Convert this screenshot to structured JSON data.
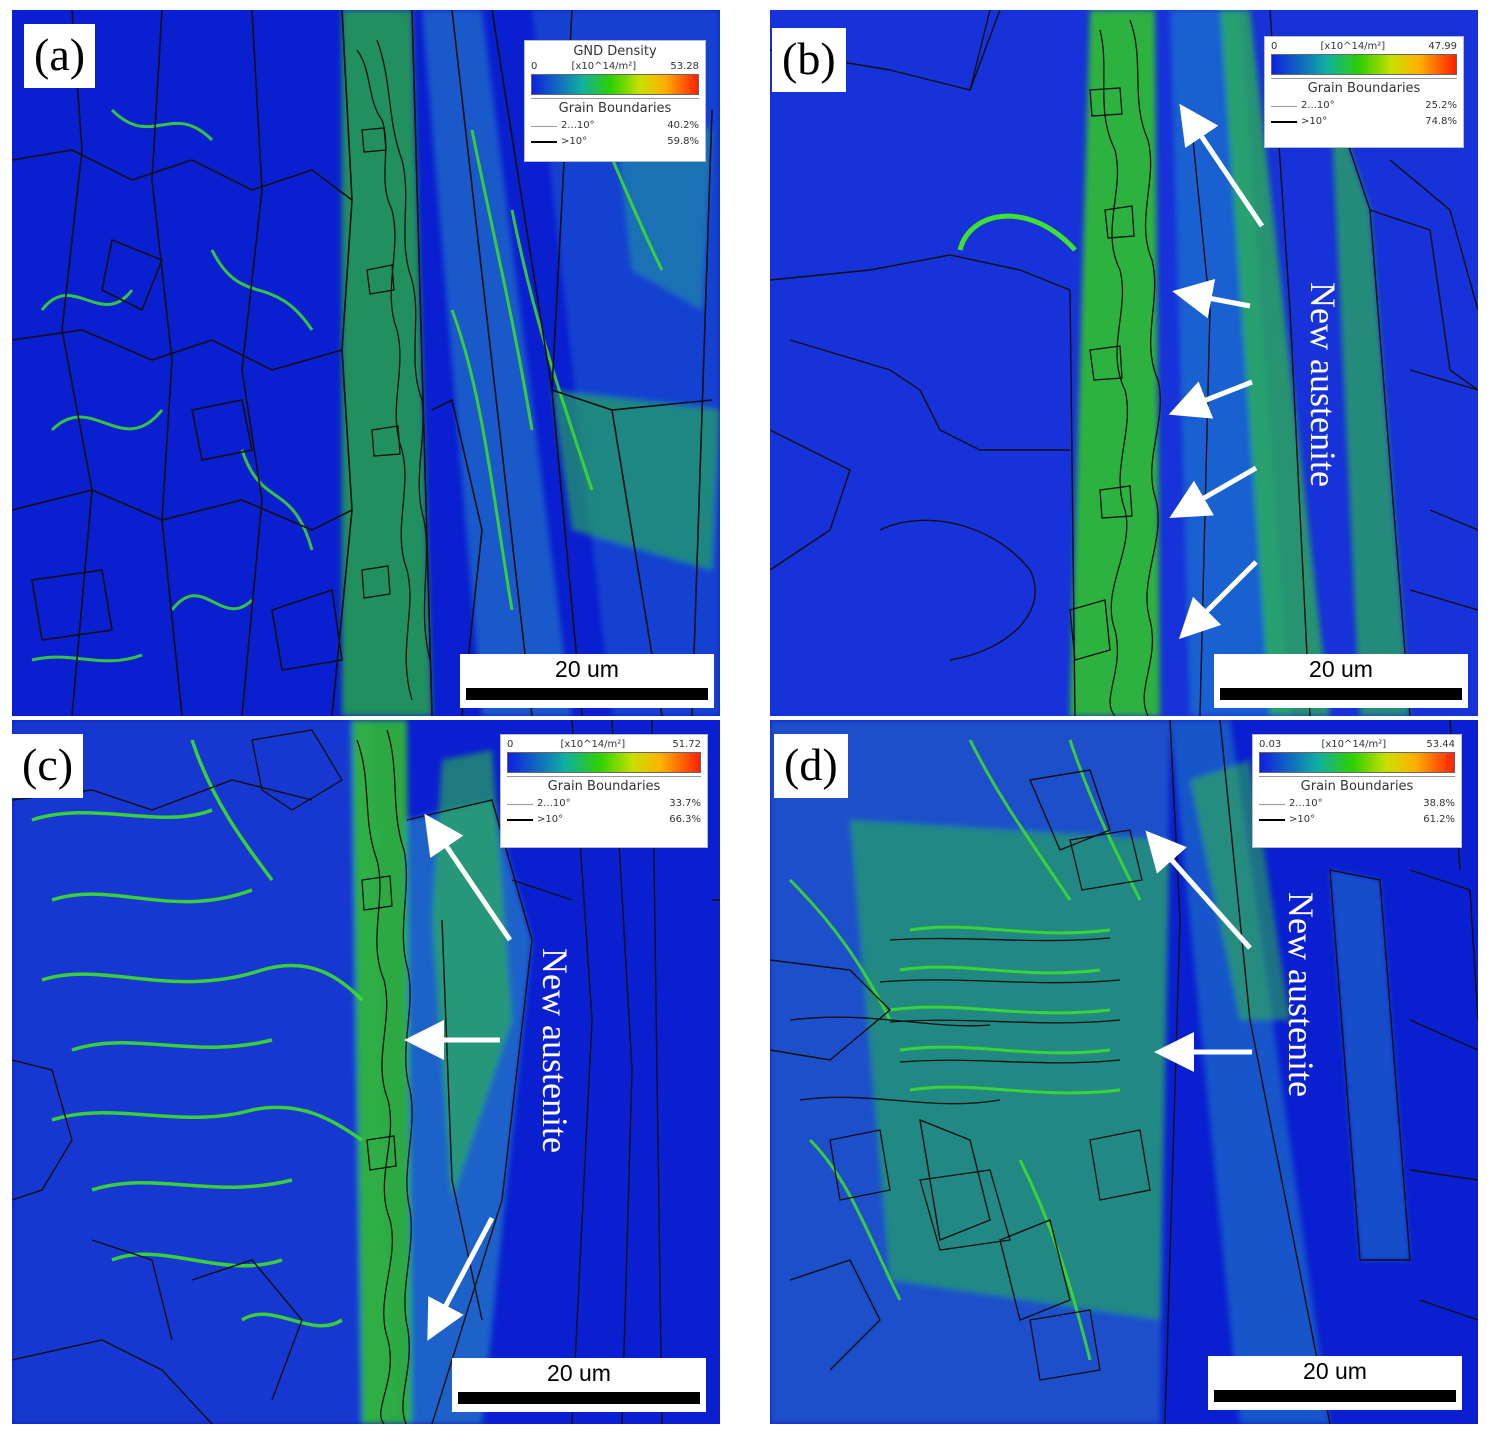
{
  "panels": [
    {
      "id": "a",
      "label": "(a)",
      "legend": {
        "title": "GND Density",
        "min": "0",
        "unit": "[x10^14/m²]",
        "max": "53.28",
        "gb_title": "Grain Boundaries",
        "low_angle": {
          "name": "2...10°",
          "pct": "40.2%"
        },
        "high_angle": {
          "name": ">10°",
          "pct": "59.8%"
        }
      },
      "scale_bar": "20 um"
    },
    {
      "id": "b",
      "label": "(b)",
      "legend": {
        "title": "",
        "min": "0",
        "unit": "[x10^14/m²]",
        "max": "47.99",
        "gb_title": "Grain Boundaries",
        "low_angle": {
          "name": "2...10°",
          "pct": "25.2%"
        },
        "high_angle": {
          "name": ">10°",
          "pct": "74.8%"
        }
      },
      "scale_bar": "20 um",
      "annotation": "New austenite"
    },
    {
      "id": "c",
      "label": "(c)",
      "legend": {
        "title": "",
        "min": "0",
        "unit": "[x10^14/m²]",
        "max": "51.72",
        "gb_title": "Grain Boundaries",
        "low_angle": {
          "name": "2...10°",
          "pct": "33.7%"
        },
        "high_angle": {
          "name": ">10°",
          "pct": "66.3%"
        }
      },
      "scale_bar": "20 um",
      "annotation": "New austenite"
    },
    {
      "id": "d",
      "label": "(d)",
      "legend": {
        "title": "",
        "min": "0.03",
        "unit": "[x10^14/m²]",
        "max": "53.44",
        "gb_title": "Grain Boundaries",
        "low_angle": {
          "name": "2...10°",
          "pct": "38.8%"
        },
        "high_angle": {
          "name": ">10°",
          "pct": "61.2%"
        }
      },
      "scale_bar": "20 um",
      "annotation": "New austenite"
    }
  ],
  "colors": {
    "background_blue": "#0a1fd0",
    "mid_blue": "#1a45d8",
    "band_green": "#35d21e",
    "band_yellow": "#d8e820",
    "hot_red": "#ff3a10",
    "boundary": "#101010",
    "arrow": "#ffffff"
  }
}
